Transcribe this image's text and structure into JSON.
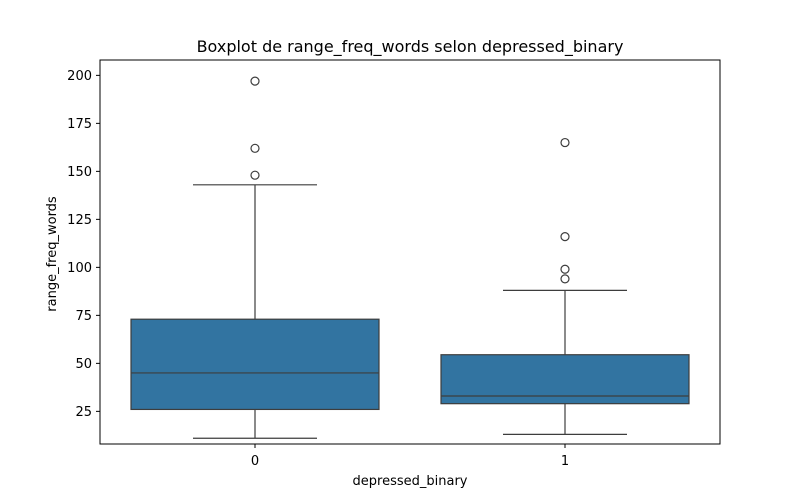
{
  "chart_data": {
    "type": "boxplot",
    "title": "Boxplot de range_freq_words selon depressed_binary",
    "xlabel": "depressed_binary",
    "ylabel": "range_freq_words",
    "categories": [
      "0",
      "1"
    ],
    "ylim": [
      8,
      208
    ],
    "yticks": [
      25,
      50,
      75,
      100,
      125,
      150,
      175,
      200
    ],
    "grid": false,
    "box_color": "#3274a1",
    "line_color": "#3d3d3d",
    "boxes": [
      {
        "category": "0",
        "whisker_low": 11,
        "q1": 26,
        "median": 45,
        "q3": 73,
        "whisker_high": 143,
        "outliers": [
          148,
          162,
          197
        ]
      },
      {
        "category": "1",
        "whisker_low": 13,
        "q1": 29,
        "median": 33,
        "q3": 54.5,
        "whisker_high": 88,
        "outliers": [
          94,
          99,
          116,
          165
        ]
      }
    ]
  }
}
